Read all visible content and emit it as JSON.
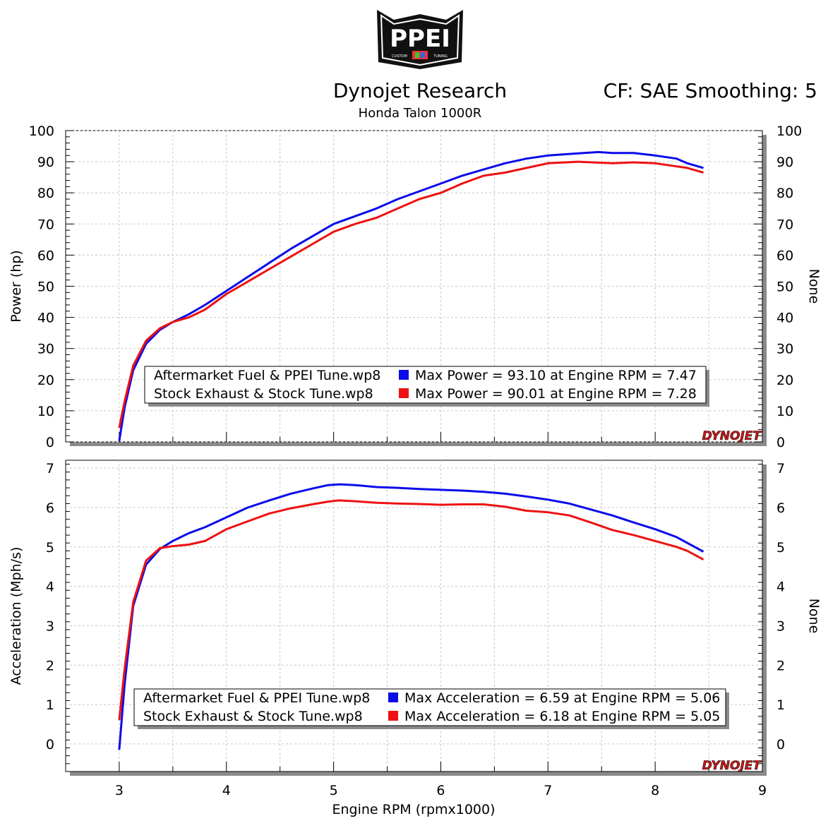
{
  "header": {
    "title": "Dynojet Research",
    "subtitle": "Honda Talon 1000R",
    "correction": "CF: SAE Smoothing: 5"
  },
  "logos": {
    "top": "PPEI",
    "top_small_left": "CUSTOM",
    "top_small_right": "TUNING",
    "watermark": "DYNOJET"
  },
  "colors": {
    "series_blue": "#0b0bea",
    "series_red": "#ee1111",
    "grid": "#c8c8c8"
  },
  "chart_data": [
    {
      "type": "line",
      "name": "power",
      "xlabel": "",
      "ylabel": "Power (hp)",
      "ylabel_right": "None",
      "xlim": [
        2.5,
        9
      ],
      "ylim": [
        0,
        100
      ],
      "yticks": [
        0,
        10,
        20,
        30,
        40,
        50,
        60,
        70,
        80,
        90,
        100
      ],
      "grid": true,
      "series": [
        {
          "name": "Aftermarket Fuel & PPEI Tune.wp8",
          "color": "#0b0bea",
          "x": [
            3.0,
            3.05,
            3.13,
            3.25,
            3.38,
            3.5,
            3.65,
            3.8,
            4.0,
            4.2,
            4.4,
            4.6,
            4.8,
            5.0,
            5.2,
            5.4,
            5.6,
            5.8,
            6.0,
            6.2,
            6.4,
            6.6,
            6.8,
            7.0,
            7.2,
            7.47,
            7.6,
            7.8,
            8.0,
            8.2,
            8.3,
            8.45
          ],
          "y": [
            0.3,
            11,
            23,
            31.5,
            36,
            38.5,
            41,
            44,
            48.5,
            53,
            57.5,
            62,
            66,
            70,
            72.5,
            75,
            78,
            80.5,
            83,
            85.5,
            87.5,
            89.5,
            91,
            92,
            92.5,
            93.1,
            92.8,
            92.8,
            92,
            91,
            89.5,
            88
          ]
        },
        {
          "name": "Stock Exhaust & Stock Tune.wp8",
          "color": "#ee1111",
          "x": [
            3.0,
            3.05,
            3.13,
            3.25,
            3.38,
            3.5,
            3.65,
            3.8,
            4.0,
            4.2,
            4.4,
            4.6,
            4.8,
            5.0,
            5.2,
            5.4,
            5.6,
            5.8,
            6.0,
            6.2,
            6.4,
            6.6,
            6.8,
            7.0,
            7.28,
            7.6,
            7.8,
            8.0,
            8.2,
            8.3,
            8.4,
            8.45
          ],
          "y": [
            4.5,
            13,
            24.5,
            32.5,
            36.5,
            38.5,
            40,
            42.5,
            47.5,
            51.5,
            55.5,
            59.5,
            63.5,
            67.5,
            70,
            72,
            75,
            78,
            80,
            83,
            85.5,
            86.5,
            88,
            89.5,
            90.01,
            89.5,
            89.8,
            89.5,
            88.5,
            88,
            87,
            86.5
          ]
        }
      ],
      "legend": {
        "placement": "bottom-center",
        "entries": [
          {
            "name": "Aftermarket Fuel & PPEI Tune.wp8",
            "color": "#0b0bea",
            "summary": "Max Power = 93.10 at Engine RPM = 7.47"
          },
          {
            "name": "Stock Exhaust & Stock Tune.wp8",
            "color": "#ee1111",
            "summary": "Max Power = 90.01 at Engine RPM = 7.28"
          }
        ]
      }
    },
    {
      "type": "line",
      "name": "acceleration",
      "xlabel": "Engine RPM (rpmx1000)",
      "ylabel": "Acceleration (Mph/s)",
      "ylabel_right": "None",
      "xlim": [
        2.5,
        9
      ],
      "xticks": [
        3,
        4,
        5,
        6,
        7,
        8,
        9
      ],
      "ylim": [
        -0.7,
        7.2
      ],
      "yticks": [
        0,
        1,
        2,
        3,
        4,
        5,
        6,
        7
      ],
      "grid": true,
      "series": [
        {
          "name": "Aftermarket Fuel & PPEI Tune.wp8",
          "color": "#0b0bea",
          "x": [
            3.0,
            3.05,
            3.13,
            3.25,
            3.38,
            3.5,
            3.65,
            3.8,
            4.0,
            4.2,
            4.4,
            4.6,
            4.8,
            4.95,
            5.06,
            5.2,
            5.4,
            5.6,
            5.8,
            6.0,
            6.2,
            6.4,
            6.6,
            6.8,
            7.0,
            7.2,
            7.4,
            7.6,
            7.8,
            8.0,
            8.2,
            8.3,
            8.45
          ],
          "y": [
            -0.15,
            1.5,
            3.5,
            4.55,
            4.95,
            5.15,
            5.35,
            5.5,
            5.75,
            6.0,
            6.18,
            6.35,
            6.48,
            6.57,
            6.59,
            6.57,
            6.52,
            6.5,
            6.47,
            6.45,
            6.43,
            6.4,
            6.35,
            6.28,
            6.2,
            6.1,
            5.95,
            5.8,
            5.62,
            5.45,
            5.25,
            5.1,
            4.88
          ]
        },
        {
          "name": "Stock Exhaust & Stock Tune.wp8",
          "color": "#ee1111",
          "x": [
            3.0,
            3.05,
            3.13,
            3.25,
            3.38,
            3.5,
            3.65,
            3.8,
            4.0,
            4.2,
            4.4,
            4.6,
            4.8,
            4.95,
            5.05,
            5.2,
            5.4,
            5.6,
            5.8,
            6.0,
            6.2,
            6.4,
            6.6,
            6.8,
            7.0,
            7.2,
            7.4,
            7.6,
            7.8,
            8.0,
            8.2,
            8.3,
            8.45
          ],
          "y": [
            0.6,
            1.9,
            3.6,
            4.65,
            4.97,
            5.02,
            5.06,
            5.15,
            5.45,
            5.65,
            5.85,
            5.98,
            6.08,
            6.15,
            6.18,
            6.16,
            6.12,
            6.1,
            6.09,
            6.07,
            6.08,
            6.08,
            6.02,
            5.92,
            5.88,
            5.8,
            5.62,
            5.43,
            5.3,
            5.15,
            5.0,
            4.9,
            4.68
          ]
        }
      ],
      "legend": {
        "placement": "bottom-center",
        "entries": [
          {
            "name": "Aftermarket Fuel & PPEI Tune.wp8",
            "color": "#0b0bea",
            "summary": "Max Acceleration = 6.59 at Engine RPM = 5.06"
          },
          {
            "name": "Stock Exhaust & Stock Tune.wp8",
            "color": "#ee1111",
            "summary": "Max Acceleration = 6.18 at Engine RPM = 5.05"
          }
        ]
      }
    }
  ]
}
